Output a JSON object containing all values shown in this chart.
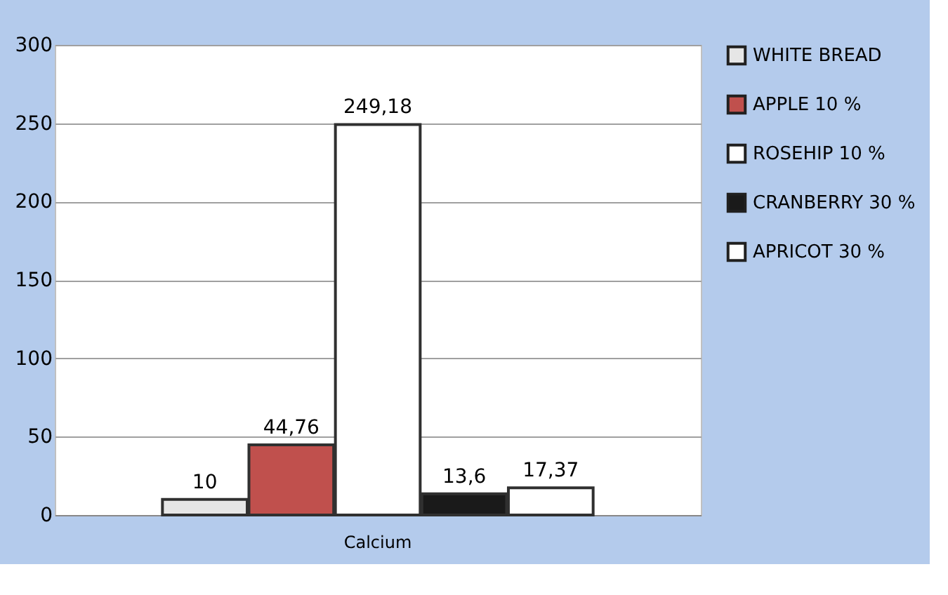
{
  "chart_data": {
    "type": "bar",
    "categories": [
      "Calcium"
    ],
    "series": [
      {
        "name": "WHITE BREAD",
        "color": "#e6e6e6",
        "values": [
          10
        ],
        "value_labels": [
          "10"
        ]
      },
      {
        "name": "APPLE 10 %",
        "color": "#c0504d",
        "values": [
          44.76
        ],
        "value_labels": [
          "44,76"
        ]
      },
      {
        "name": "ROSEHIP 10 %",
        "color": "#ffffff",
        "values": [
          249.18
        ],
        "value_labels": [
          "249,18"
        ]
      },
      {
        "name": "CRANBERRY 30 %",
        "color": "#1a1a1a",
        "values": [
          13.6
        ],
        "value_labels": [
          "13,6"
        ]
      },
      {
        "name": "APRICOT 30 %",
        "color": "#ffffff",
        "values": [
          17.37
        ],
        "value_labels": [
          "17,37"
        ]
      }
    ],
    "ylim": [
      0,
      300
    ],
    "yticks": [
      0,
      50,
      100,
      150,
      200,
      250,
      300
    ],
    "grid": "y",
    "legend": "right"
  }
}
